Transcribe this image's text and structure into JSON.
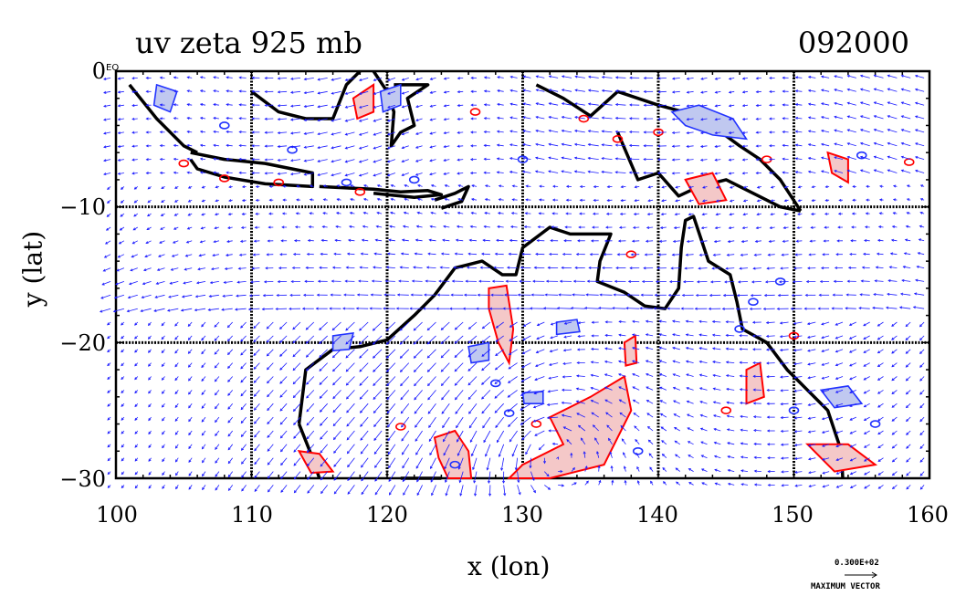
{
  "title_left": "uv zeta 925 mb",
  "title_right": "092000",
  "chart_data": {
    "type": "vector-field",
    "xlabel": "x (lon)",
    "ylabel": "y (lat)",
    "xlim": [
      100,
      160
    ],
    "ylim": [
      -30,
      0
    ],
    "x_ticks": [
      "100",
      "110",
      "120",
      "130",
      "140",
      "150",
      "160"
    ],
    "y_ticks": [
      "0",
      "−10",
      "−20",
      "−30"
    ],
    "grid": true,
    "equator_label": "EQ",
    "vector_legend": {
      "value": "0.300E+02",
      "label": "MAXIMUM VECTOR"
    },
    "colors": {
      "vectors": "#1a1aff",
      "positive_contour": "#ff0000",
      "positive_fill": "#f4c8c8",
      "negative_contour": "#2233ff",
      "negative_fill": "#c0c8f0",
      "coastline": "#000000"
    }
  }
}
